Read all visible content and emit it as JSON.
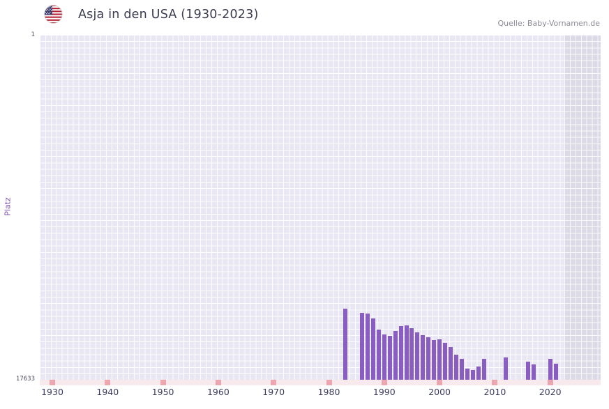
{
  "header": {
    "title": "Asja in den USA (1930-2023)",
    "source": "Quelle: Baby-Vornamen.de"
  },
  "chart_data": {
    "type": "bar",
    "title": "Asja in den USA (1930-2023)",
    "xlabel": "",
    "ylabel": "Platz",
    "y_axis": {
      "top_label": "1",
      "bottom_label": "17633",
      "min": 1,
      "max": 17633,
      "inverted": true
    },
    "x_range": [
      1930,
      2023
    ],
    "x_ticks": [
      1930,
      1940,
      1950,
      1960,
      1970,
      1980,
      1990,
      2000,
      2010,
      2020
    ],
    "shaded_from_year": 2023,
    "grid": true,
    "legend": "none",
    "bar_color": "#8a5ec0",
    "plot_bg": "#e9e7f4",
    "shaded_band_color": "#dcdae7",
    "axis_band_color": "#f8e9ec",
    "axis_mark_color": "#eba6b0",
    "points": [
      {
        "year": 1983,
        "rank": 14000
      },
      {
        "year": 1986,
        "rank": 14200
      },
      {
        "year": 1987,
        "rank": 14250
      },
      {
        "year": 1988,
        "rank": 14500
      },
      {
        "year": 1989,
        "rank": 15050
      },
      {
        "year": 1990,
        "rank": 15300
      },
      {
        "year": 1991,
        "rank": 15400
      },
      {
        "year": 1992,
        "rank": 15150
      },
      {
        "year": 1993,
        "rank": 14900
      },
      {
        "year": 1994,
        "rank": 14850
      },
      {
        "year": 1995,
        "rank": 15000
      },
      {
        "year": 1996,
        "rank": 15200
      },
      {
        "year": 1997,
        "rank": 15350
      },
      {
        "year": 1998,
        "rank": 15450
      },
      {
        "year": 1999,
        "rank": 15600
      },
      {
        "year": 2000,
        "rank": 15550
      },
      {
        "year": 2001,
        "rank": 15750
      },
      {
        "year": 2002,
        "rank": 15950
      },
      {
        "year": 2003,
        "rank": 16350
      },
      {
        "year": 2004,
        "rank": 16550
      },
      {
        "year": 2005,
        "rank": 17050
      },
      {
        "year": 2006,
        "rank": 17150
      },
      {
        "year": 2007,
        "rank": 16950
      },
      {
        "year": 2008,
        "rank": 16550
      },
      {
        "year": 2012,
        "rank": 16500
      },
      {
        "year": 2016,
        "rank": 16700
      },
      {
        "year": 2017,
        "rank": 16850
      },
      {
        "year": 2020,
        "rank": 16550
      },
      {
        "year": 2021,
        "rank": 16800
      }
    ]
  }
}
